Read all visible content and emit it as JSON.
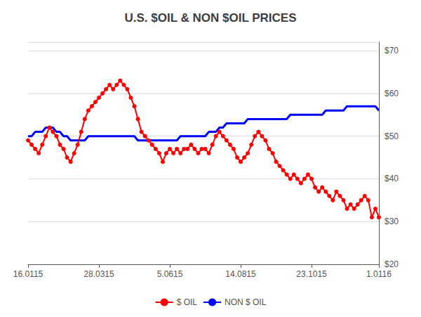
{
  "chart_data": {
    "type": "line",
    "title": "U.S. $OIL & NON $OIL PRICES",
    "categories": [
      "16.0115",
      null,
      null,
      null,
      null,
      null,
      null,
      null,
      null,
      null,
      null,
      null,
      null,
      null,
      null,
      null,
      null,
      null,
      null,
      null,
      "28.0315",
      null,
      null,
      null,
      null,
      null,
      null,
      null,
      null,
      null,
      null,
      null,
      null,
      null,
      null,
      null,
      null,
      null,
      null,
      null,
      "5.0615",
      null,
      null,
      null,
      null,
      null,
      null,
      null,
      null,
      null,
      null,
      null,
      null,
      null,
      null,
      null,
      null,
      null,
      null,
      null,
      "14.0815",
      null,
      null,
      null,
      null,
      null,
      null,
      null,
      null,
      null,
      null,
      null,
      null,
      null,
      null,
      null,
      null,
      null,
      null,
      null,
      "23.1015",
      null,
      null,
      null,
      null,
      null,
      null,
      null,
      null,
      null,
      null,
      null,
      null,
      null,
      null,
      null,
      null,
      null,
      null,
      "1.0116"
    ],
    "series": [
      {
        "name": "$ OIL",
        "color": "#ff0000",
        "marker": "circle",
        "values": [
          49,
          48,
          47,
          46,
          48,
          50,
          52,
          51,
          50,
          48,
          47,
          45,
          44,
          46,
          48,
          51,
          54,
          56,
          57,
          58,
          59,
          60,
          61,
          62,
          61,
          62,
          63,
          62,
          61,
          59,
          57,
          54,
          51,
          50,
          49,
          48,
          47,
          46,
          44,
          46,
          47,
          46,
          47,
          46,
          47,
          47,
          48,
          47,
          46,
          47,
          47,
          46,
          48,
          50,
          51,
          50,
          49,
          48,
          47,
          45,
          44,
          45,
          46,
          48,
          50,
          51,
          50,
          49,
          47,
          46,
          44,
          43,
          42,
          41,
          40,
          41,
          40,
          39,
          40,
          41,
          40,
          38,
          37,
          38,
          37,
          36,
          35,
          37,
          36,
          35,
          33,
          34,
          33,
          34,
          35,
          36,
          35,
          31,
          33,
          31
        ]
      },
      {
        "name": "NON $ OIL",
        "color": "#0000ff",
        "values": [
          50,
          50,
          51,
          51,
          51,
          52,
          52,
          52,
          51,
          51,
          50,
          50,
          49,
          49,
          49,
          49,
          49,
          50,
          50,
          50,
          50,
          50,
          50,
          50,
          50,
          50,
          50,
          50,
          50,
          50,
          50,
          49,
          49,
          49,
          49,
          49,
          49,
          49,
          49,
          49,
          49,
          49,
          49,
          50,
          50,
          50,
          50,
          50,
          50,
          50,
          50,
          51,
          51,
          51,
          52,
          52,
          53,
          53,
          53,
          53,
          53,
          53,
          54,
          54,
          54,
          54,
          54,
          54,
          54,
          54,
          54,
          54,
          54,
          54,
          55,
          55,
          55,
          55,
          55,
          55,
          55,
          55,
          55,
          55,
          56,
          56,
          56,
          56,
          56,
          56,
          57,
          57,
          57,
          57,
          57,
          57,
          57,
          57,
          57,
          56
        ]
      }
    ],
    "ylim": [
      20,
      72
    ],
    "yticks": [
      {
        "value": 70,
        "label": "$70"
      },
      {
        "value": 60,
        "label": "$60"
      },
      {
        "value": 50,
        "label": "$50"
      },
      {
        "value": 40,
        "label": "$40"
      },
      {
        "value": 30,
        "label": "$30"
      },
      {
        "value": 20,
        "label": "$20"
      }
    ],
    "grid": true,
    "legend": "bottom"
  }
}
